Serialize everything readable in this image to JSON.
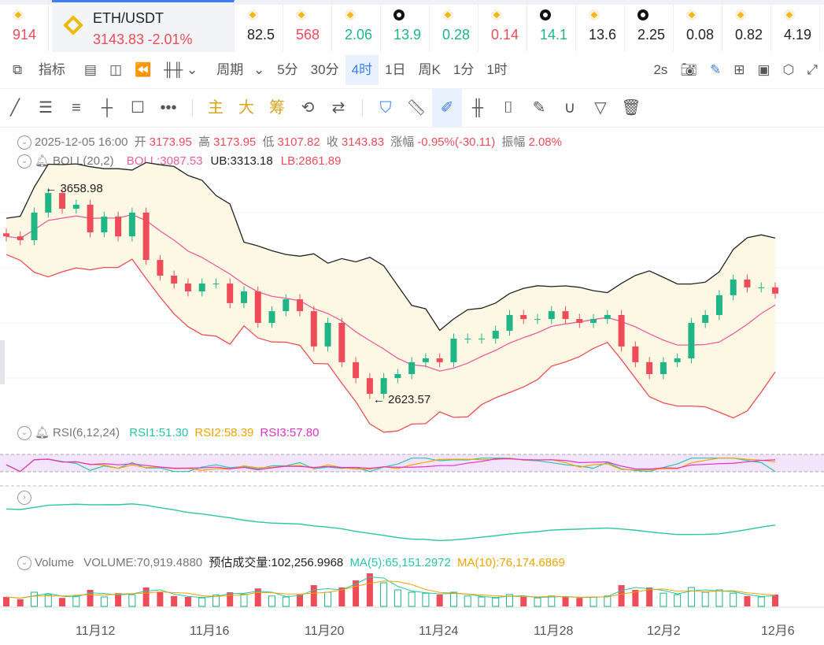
{
  "tickers": [
    {
      "value": "914",
      "color": "red",
      "icon": "binance-icon"
    },
    {
      "pair": "ETH/USDT",
      "price": "3143.83",
      "change": "-2.01%",
      "active": true,
      "icon": "binance-icon"
    },
    {
      "value": "82.5",
      "color": "dark",
      "icon": "binance-icon"
    },
    {
      "value": "568",
      "color": "red",
      "icon": "binance-icon"
    },
    {
      "value": "2.06",
      "color": "green",
      "icon": "binance-icon"
    },
    {
      "value": "13.9",
      "color": "green",
      "icon": "okx-icon"
    },
    {
      "value": "0.28",
      "color": "green",
      "icon": "binance-icon"
    },
    {
      "value": "0.14",
      "color": "red",
      "icon": "binance-icon"
    },
    {
      "value": "14.1",
      "color": "green",
      "icon": "okx-icon"
    },
    {
      "value": "13.6",
      "color": "dark",
      "icon": "binance-icon"
    },
    {
      "value": "2.25",
      "color": "dark",
      "icon": "okx-icon"
    },
    {
      "value": "0.08",
      "color": "dark",
      "icon": "binance-icon"
    },
    {
      "value": "0.82",
      "color": "dark",
      "icon": "binance-icon"
    },
    {
      "value": "4.19",
      "color": "dark",
      "icon": "binance-icon"
    }
  ],
  "toolbar": {
    "indicator": "指标",
    "period": "周期",
    "intervals": [
      "5分",
      "30分",
      "4时",
      "1日",
      "周K",
      "1分",
      "1时"
    ],
    "selected": "4时",
    "refresh": "2s"
  },
  "drawtools": {
    "main": "主",
    "big": "大",
    "chips": "筹"
  },
  "ohlc": {
    "datetime": "2025-12-05 16:00",
    "open_label": "开",
    "open": "3173.95",
    "high_label": "高",
    "high": "3173.95",
    "low_label": "低",
    "low": "3107.82",
    "close_label": "收",
    "close": "3143.83",
    "change_label": "涨幅",
    "change": "-0.95%(-30.11)",
    "amp_label": "振幅",
    "amp": "2.08%"
  },
  "boll": {
    "name": "BOLL(20,2)",
    "mid": "BOLL:3087.53",
    "ub": "UB:3313.18",
    "lb": "LB:2861.89"
  },
  "rsi": {
    "name": "RSI(6,12,24)",
    "r1": "RSI1:51.30",
    "r2": "RSI2:58.39",
    "r3": "RSI3:57.80"
  },
  "volume": {
    "name": "Volume",
    "vol": "VOLUME:70,919.4880",
    "est": "预估成交量:102,256.9968",
    "ma5": "MA(5):65,151.2972",
    "ma10": "MA(10):76,174.6869"
  },
  "colors": {
    "up": "#1fb586",
    "down": "#ef4c59",
    "accent": "#3d7ff6",
    "boll_mid": "#ec5f9e",
    "boll_ub": "#222222",
    "boll_lb": "#ef4c59"
  },
  "chart_data": {
    "type": "candlestick",
    "high_label": "3658.98",
    "low_label": "2623.57",
    "x_ticks": [
      "11月12",
      "11月16",
      "11月20",
      "11月24",
      "11月28",
      "12月2",
      "12月6"
    ],
    "closes": [
      3428,
      3409,
      3546,
      3643,
      3565,
      3585,
      3448,
      3526,
      3428,
      3546,
      3311,
      3233,
      3194,
      3155,
      3194,
      3194,
      3097,
      3155,
      2999,
      3057,
      3116,
      3057,
      2882,
      2999,
      2804,
      2725,
      2647,
      2725,
      2745,
      2804,
      2823,
      2804,
      2921,
      2921,
      2921,
      2960,
      3038,
      3018,
      3018,
      3057,
      3018,
      2999,
      3018,
      3038,
      2882,
      2804,
      2745,
      2804,
      2823,
      2999,
      3038,
      3136,
      3214,
      3175,
      3175,
      3144
    ],
    "volumes": [
      20,
      15,
      30,
      25,
      18,
      22,
      35,
      20,
      28,
      25,
      40,
      30,
      22,
      20,
      18,
      24,
      30,
      26,
      38,
      22,
      20,
      25,
      45,
      30,
      40,
      55,
      70,
      50,
      35,
      30,
      28,
      25,
      30,
      22,
      20,
      18,
      25,
      20,
      18,
      22,
      20,
      18,
      20,
      22,
      45,
      35,
      40,
      28,
      25,
      40,
      30,
      35,
      28,
      22,
      20,
      25
    ]
  }
}
